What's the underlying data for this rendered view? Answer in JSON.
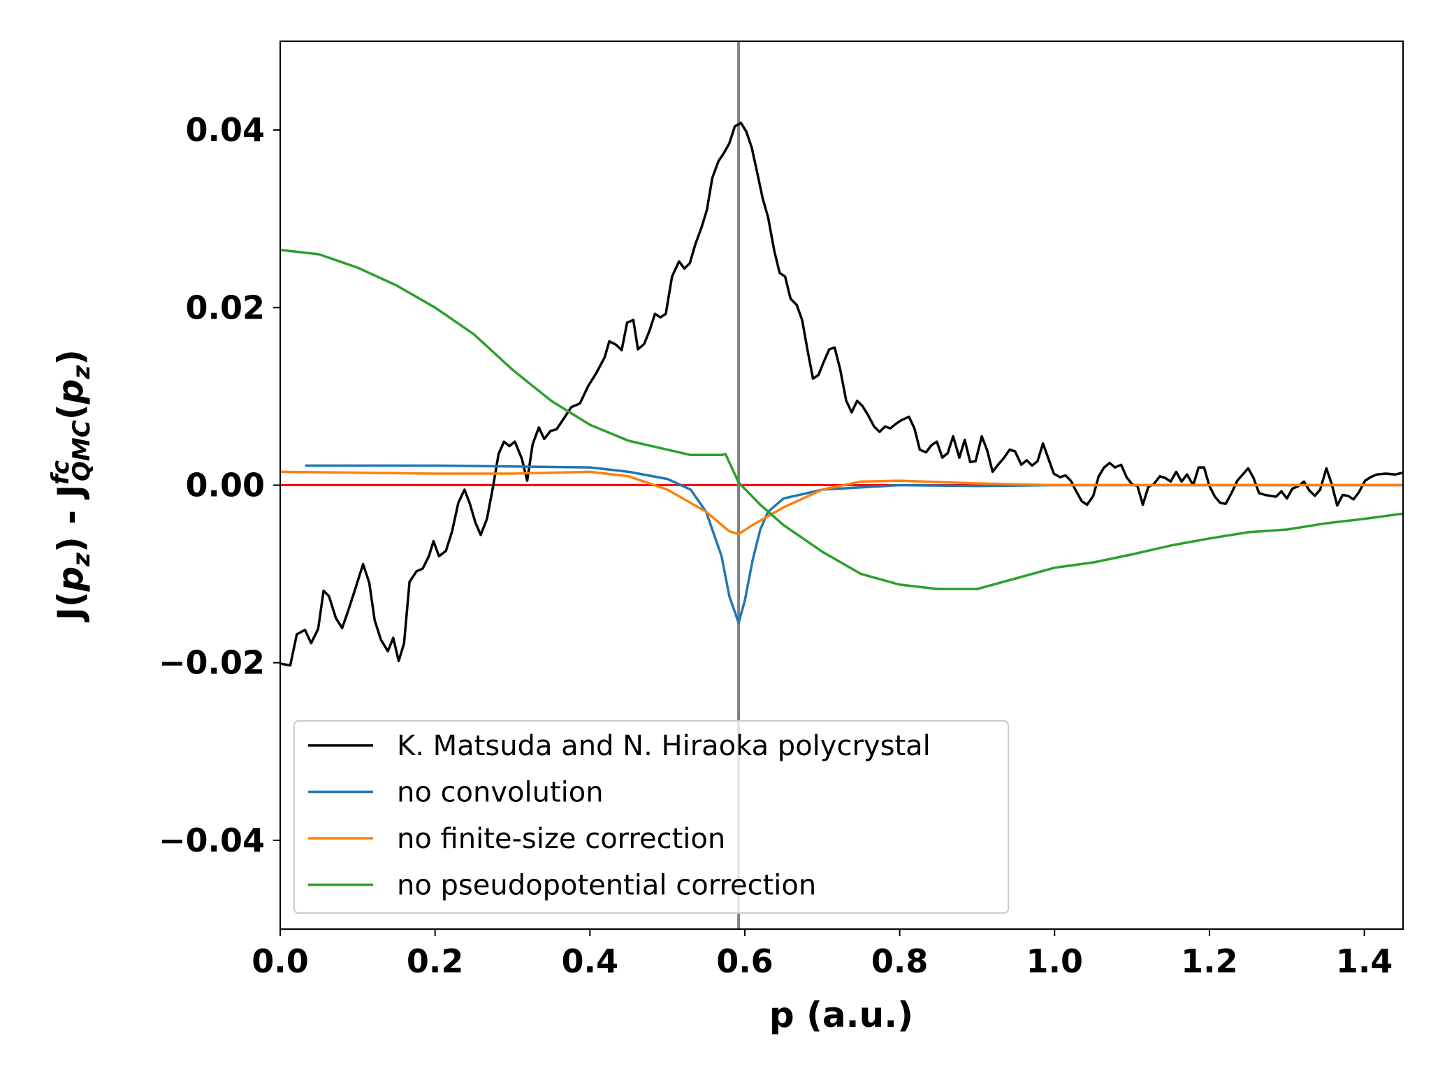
{
  "chart_data": {
    "type": "line",
    "xlabel": "p (a.u.)",
    "ylabel": [
      "J(",
      "p",
      "z",
      ") - J",
      "fc",
      "QMC",
      "(",
      "p",
      "z",
      ")"
    ],
    "xlim": [
      0,
      1.45
    ],
    "ylim": [
      -0.05,
      0.05
    ],
    "xticks": [
      {
        "value": 0,
        "label": "0.0"
      },
      {
        "value": 0.2,
        "label": "0.2"
      },
      {
        "value": 0.4,
        "label": "0.4"
      },
      {
        "value": 0.6,
        "label": "0.6"
      },
      {
        "value": 0.8,
        "label": "0.8"
      },
      {
        "value": 1.0,
        "label": "1.0"
      },
      {
        "value": 1.2,
        "label": "1.2"
      },
      {
        "value": 1.4,
        "label": "1.4"
      }
    ],
    "yticks": [
      {
        "value": -0.04,
        "label": "−0.04"
      },
      {
        "value": -0.02,
        "label": "−0.02"
      },
      {
        "value": 0,
        "label": "0.00"
      },
      {
        "value": 0.02,
        "label": "0.02"
      },
      {
        "value": 0.04,
        "label": "0.04"
      }
    ],
    "grid": false,
    "legend": "lower left",
    "hlines": [
      {
        "y": 0,
        "color": "#ff0000"
      }
    ],
    "vlines": [
      {
        "x": 0.592,
        "color": "#808080"
      }
    ],
    "series": [
      {
        "name": "K. Matsuda and N. Hiraoka polycrystal",
        "color": "#000000",
        "x": [
          0,
          0.013,
          0.0215,
          0.032,
          0.04,
          0.049,
          0.056,
          0.063,
          0.072,
          0.08,
          0.088,
          0.098,
          0.107,
          0.115,
          0.122,
          0.13,
          0.139,
          0.146,
          0.153,
          0.16,
          0.167,
          0.176,
          0.184,
          0.192,
          0.198,
          0.205,
          0.214,
          0.222,
          0.23,
          0.238,
          0.245,
          0.252,
          0.259,
          0.267,
          0.275,
          0.282,
          0.289,
          0.296,
          0.303,
          0.312,
          0.319,
          0.326,
          0.334,
          0.341,
          0.349,
          0.357,
          0.367,
          0.376,
          0.387,
          0.398,
          0.408,
          0.419,
          0.425,
          0.434,
          0.441,
          0.448,
          0.456,
          0.462,
          0.47,
          0.477,
          0.484,
          0.491,
          0.498,
          0.506,
          0.515,
          0.522,
          0.529,
          0.536,
          0.544,
          0.551,
          0.558,
          0.566,
          0.573,
          0.58,
          0.587,
          0.595,
          0.602,
          0.609,
          0.616,
          0.623,
          0.63,
          0.638,
          0.645,
          0.652,
          0.659,
          0.667,
          0.674,
          0.681,
          0.688,
          0.695,
          0.702,
          0.709,
          0.716,
          0.723,
          0.731,
          0.738,
          0.745,
          0.752,
          0.759,
          0.767,
          0.774,
          0.781,
          0.788,
          0.795,
          0.802,
          0.812,
          0.819,
          0.826,
          0.834,
          0.841,
          0.848,
          0.855,
          0.862,
          0.869,
          0.877,
          0.884,
          0.891,
          0.898,
          0.906,
          0.913,
          0.92,
          0.927,
          0.934,
          0.942,
          0.949,
          0.957,
          0.964,
          0.971,
          0.978,
          0.985,
          0.992,
          0.999,
          1.007,
          1.014,
          1.021,
          1.028,
          1.035,
          1.042,
          1.05,
          1.057,
          1.064,
          1.071,
          1.078,
          1.086,
          1.093,
          1.1,
          1.107,
          1.114,
          1.121,
          1.128,
          1.136,
          1.143,
          1.15,
          1.157,
          1.164,
          1.171,
          1.179,
          1.186,
          1.193,
          1.2,
          1.207,
          1.214,
          1.221,
          1.229,
          1.236,
          1.243,
          1.25,
          1.257,
          1.264,
          1.272,
          1.279,
          1.286,
          1.293,
          1.3,
          1.307,
          1.315,
          1.322,
          1.329,
          1.336,
          1.343,
          1.351,
          1.358,
          1.365,
          1.372,
          1.379,
          1.386,
          1.393,
          1.401,
          1.408,
          1.416,
          1.428,
          1.44,
          1.45
        ],
        "values": [
          -0.0201,
          -0.0203,
          -0.0168,
          -0.0163,
          -0.0178,
          -0.0162,
          -0.0119,
          -0.0125,
          -0.015,
          -0.0161,
          -0.0141,
          -0.0114,
          -0.0089,
          -0.011,
          -0.0152,
          -0.0174,
          -0.0187,
          -0.0172,
          -0.0198,
          -0.0178,
          -0.0109,
          -0.0097,
          -0.0094,
          -0.008,
          -0.0063,
          -0.008,
          -0.0074,
          -0.0052,
          -0.002,
          -0.0005,
          -0.0021,
          -0.0042,
          -0.0056,
          -0.0038,
          -0.0001,
          0.0035,
          0.0049,
          0.0044,
          0.0049,
          0.003,
          0.0005,
          0.0046,
          0.0065,
          0.0052,
          0.0061,
          0.0063,
          0.0076,
          0.0088,
          0.0092,
          0.0112,
          0.0126,
          0.0144,
          0.0162,
          0.0158,
          0.0152,
          0.0183,
          0.0186,
          0.0153,
          0.0159,
          0.0174,
          0.0193,
          0.0189,
          0.0193,
          0.0235,
          0.0252,
          0.0244,
          0.025,
          0.0271,
          0.029,
          0.031,
          0.0346,
          0.0365,
          0.0374,
          0.0385,
          0.0404,
          0.0408,
          0.0398,
          0.038,
          0.0352,
          0.0323,
          0.0302,
          0.0264,
          0.0239,
          0.0235,
          0.021,
          0.0203,
          0.0186,
          0.0152,
          0.012,
          0.0124,
          0.0139,
          0.0153,
          0.0155,
          0.0131,
          0.0095,
          0.0082,
          0.0095,
          0.0089,
          0.0079,
          0.0066,
          0.006,
          0.0066,
          0.0064,
          0.0069,
          0.0073,
          0.0077,
          0.0064,
          0.004,
          0.0037,
          0.0045,
          0.0049,
          0.0031,
          0.0036,
          0.0055,
          0.0031,
          0.0051,
          0.0026,
          0.0027,
          0.0055,
          0.0039,
          0.0015,
          0.0023,
          0.003,
          0.004,
          0.0038,
          0.0023,
          0.0028,
          0.0022,
          0.0027,
          0.0047,
          0.003,
          0.0013,
          0.0009,
          0.0011,
          0.0005,
          -0.0007,
          -0.0018,
          -0.0022,
          -0.0012,
          0.001,
          0.002,
          0.0025,
          0.002,
          0.0023,
          0.0009,
          0.0001,
          -0.0001,
          -0.0022,
          -0.0002,
          0.0001,
          0.001,
          0.0008,
          0.0004,
          0.0015,
          0.0004,
          0.0012,
          0,
          0.002,
          0.002,
          -0.0001,
          -0.0013,
          -0.002,
          -0.0021,
          -0.0008,
          0.0005,
          0.0012,
          0.0019,
          0.0008,
          -0.0009,
          -0.0011,
          -0.0012,
          -0.0013,
          -0.0007,
          -0.0015,
          -0.0004,
          -0.0001,
          0.0004,
          -0.0006,
          -0.0012,
          -0.0005,
          0.0019,
          0.0001,
          -0.0023,
          -0.0011,
          -0.0012,
          -0.0016,
          -0.0008,
          0.0005,
          0.0009,
          0.0012,
          0.0013,
          0.0012,
          0.0014
        ]
      },
      {
        "name": "no convolution",
        "color": "#1f77b4",
        "x": [
          0.032,
          0.1,
          0.2,
          0.3,
          0.4,
          0.45,
          0.5,
          0.53,
          0.55,
          0.57,
          0.58,
          0.592,
          0.6,
          0.61,
          0.62,
          0.63,
          0.65,
          0.7,
          0.8,
          0.9,
          1.0,
          1.2,
          1.45
        ],
        "values": [
          0.0022,
          0.0022,
          0.0022,
          0.0021,
          0.002,
          0.0015,
          0.0007,
          -0.0005,
          -0.003,
          -0.008,
          -0.0125,
          -0.0155,
          -0.013,
          -0.0085,
          -0.005,
          -0.003,
          -0.0015,
          -0.0005,
          0,
          -0.0001,
          0,
          0,
          0
        ]
      },
      {
        "name": "no finite-size correction",
        "color": "#ff7f0e",
        "x": [
          0,
          0.1,
          0.2,
          0.3,
          0.4,
          0.45,
          0.5,
          0.55,
          0.58,
          0.592,
          0.61,
          0.65,
          0.7,
          0.75,
          0.8,
          0.9,
          1.0,
          1.2,
          1.45
        ],
        "values": [
          0.0015,
          0.0014,
          0.0013,
          0.0013,
          0.0015,
          0.001,
          -0.0005,
          -0.003,
          -0.0052,
          -0.0055,
          -0.0045,
          -0.0025,
          -0.0005,
          0.0004,
          0.0005,
          0.0002,
          0,
          0,
          0
        ]
      },
      {
        "name": "no pseudopotential correction",
        "color": "#2ca02c",
        "x": [
          0,
          0.05,
          0.1,
          0.15,
          0.2,
          0.25,
          0.3,
          0.35,
          0.4,
          0.45,
          0.5,
          0.53,
          0.57,
          0.575,
          0.592,
          0.62,
          0.65,
          0.7,
          0.75,
          0.8,
          0.85,
          0.9,
          0.95,
          1.0,
          1.05,
          1.1,
          1.15,
          1.2,
          1.25,
          1.3,
          1.35,
          1.4,
          1.45
        ],
        "values": [
          0.0265,
          0.026,
          0.0245,
          0.0225,
          0.02,
          0.017,
          0.013,
          0.0095,
          0.0068,
          0.005,
          0.004,
          0.0034,
          0.0034,
          0.0035,
          0.0003,
          -0.0022,
          -0.0045,
          -0.0075,
          -0.01,
          -0.0112,
          -0.0117,
          -0.0117,
          -0.0105,
          -0.0093,
          -0.0087,
          -0.0078,
          -0.0068,
          -0.006,
          -0.0053,
          -0.005,
          -0.0043,
          -0.0038,
          -0.0032
        ]
      }
    ]
  }
}
